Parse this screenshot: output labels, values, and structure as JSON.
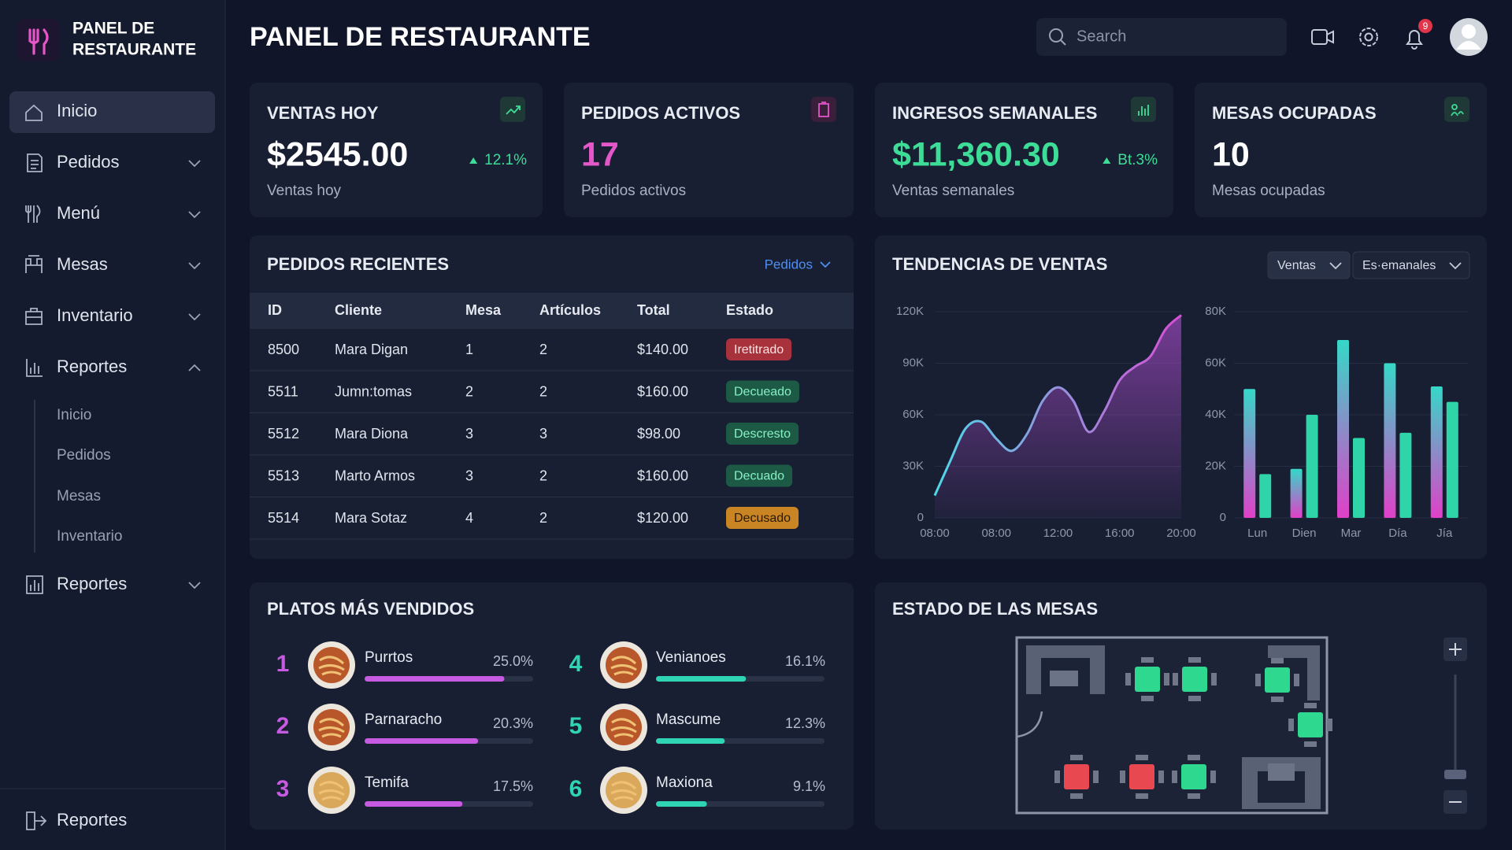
{
  "brand": {
    "title_lines": [
      "PANEL DE",
      "RESTAURANTE"
    ]
  },
  "header": {
    "title": "PANEL DE RESTAURANTE",
    "search_placeholder": "Search",
    "notification_badge": "9"
  },
  "sidebar": {
    "items": [
      "Inicio",
      "Pedidos",
      "Menú",
      "Mesas",
      "Inventario",
      "Reportes"
    ],
    "subitems": [
      "Inicio",
      "Pedidos",
      "Mesas",
      "Inventario"
    ],
    "extra_item": "Reportes",
    "footer_item": "Reportes"
  },
  "kpis": [
    {
      "title": "VENTAS HOY",
      "value": "$2545.00",
      "value_color": "#ffffff",
      "change": "12.1%",
      "subtitle": "Ventas hoy"
    },
    {
      "title": "PEDIDOS ACTIVOS",
      "value": "17",
      "value_color": "#e457c9",
      "subtitle": "Pedidos activos"
    },
    {
      "title": "INGRESOS SEMANALES",
      "value": "$11,360.30",
      "value_color": "#3ddc97",
      "change": "Bt.3%",
      "subtitle": "Ventas semanales"
    },
    {
      "title": "MESAS OCUPADAS",
      "value": "10",
      "value_color": "#ffffff",
      "subtitle": "Mesas ocupadas"
    }
  ],
  "recent_orders": {
    "title": "PEDIDOS RECIENTES",
    "filter": "Pedidos",
    "columns": [
      "ID",
      "Cliente",
      "Mesa",
      "Artículos",
      "Total",
      "Estado"
    ],
    "rows": [
      [
        "8500",
        "Mara Digan",
        "1",
        "2",
        "$140.00",
        "Iretitrado"
      ],
      [
        "5511",
        "Jumn:tomas",
        "2",
        "2",
        "$160.00",
        "Decueado"
      ],
      [
        "5512",
        "Mara Diona",
        "3",
        "3",
        "$98.00",
        "Descresto"
      ],
      [
        "5513",
        "Marto Armos",
        "3",
        "2",
        "$160.00",
        "Decuado"
      ],
      [
        "5514",
        "Mara Sotaz",
        "4",
        "2",
        "$120.00",
        "Decusado"
      ]
    ],
    "status_styles": [
      {
        "fill": "#a8323b",
        "text": "#ffe1e1"
      },
      {
        "fill": "#1d5a45",
        "text": "#86f0c4"
      },
      {
        "fill": "#1d5a45",
        "text": "#86f0c4"
      },
      {
        "fill": "#1d5a45",
        "text": "#86f0c4"
      },
      {
        "fill": "#c98424",
        "text": "#2a1a05"
      }
    ]
  },
  "sales_trends": {
    "title": "TENDENCIAS DE VENTAS",
    "filters": [
      "Ventas",
      "Es·emanales"
    ]
  },
  "chart_data": [
    {
      "type": "area",
      "categories": [
        "08:00",
        null,
        null,
        null,
        "08:00",
        null,
        null,
        null,
        "12:00",
        null,
        null,
        null,
        "16:00",
        null,
        null,
        null,
        "20:00"
      ],
      "values": [
        13000,
        33000,
        52000,
        56000,
        46000,
        39000,
        49000,
        68000,
        76000,
        68000,
        50000,
        62000,
        80000,
        88000,
        94000,
        110000,
        118000
      ],
      "ylim": [
        0,
        120000
      ],
      "yticks": [
        0,
        {
          "value": 30000,
          "label": "30K"
        },
        {
          "value": 60000,
          "label": "60K"
        },
        {
          "value": 90000,
          "label": "90K"
        },
        {
          "value": 120000,
          "label": "120K"
        }
      ],
      "color": "#b44fd6",
      "line_gradient": [
        "#4fd8e8",
        "#d84fd6"
      ],
      "grid": true
    },
    {
      "type": "bar",
      "categories": [
        "Lun",
        "Dien",
        "Mar",
        "Día",
        "Jía"
      ],
      "series": [
        {
          "color": "#35d8c8",
          "gradient": [
            "#e040c8",
            "#35d8c8"
          ],
          "values": [
            50000,
            19000,
            69000,
            60000,
            51000
          ]
        },
        {
          "color": "#2fd4a8",
          "values": [
            17000,
            40000,
            31000,
            33000,
            45000
          ]
        }
      ],
      "ylim": [
        0,
        80000
      ],
      "yticks": [
        0,
        {
          "value": 20000,
          "label": "20K"
        },
        {
          "value": 40000,
          "label": "40K"
        },
        {
          "value": 60000,
          "label": "60K"
        },
        {
          "value": 80000,
          "label": "80K"
        }
      ],
      "grid": true
    }
  ],
  "top_dishes": {
    "title": "PLATOS MÁS VENDIDOS",
    "items": [
      {
        "rank": 1,
        "name": "Purrtos",
        "share": 25.0,
        "share_label": "25.0%",
        "color": "#c65ae0"
      },
      {
        "rank": 2,
        "name": "Parnaracho",
        "share": 20.3,
        "share_label": "20.3%",
        "color": "#c65ae0"
      },
      {
        "rank": 3,
        "name": "Temifa",
        "share": 17.5,
        "share_label": "17.5%",
        "color": "#c65ae0"
      },
      {
        "rank": 4,
        "name": "Venianoes",
        "share": 16.1,
        "share_label": "16.1%",
        "color": "#2fd4b5"
      },
      {
        "rank": 5,
        "name": "Mascume",
        "share": 12.3,
        "share_label": "12.3%",
        "color": "#2fd4b5"
      },
      {
        "rank": 6,
        "name": "Maxiona",
        "share": 9.1,
        "share_label": "9.1%",
        "color": "#2fd4b5"
      }
    ]
  },
  "tables_status": {
    "title": "ESTADO DE LAS MESAS"
  }
}
